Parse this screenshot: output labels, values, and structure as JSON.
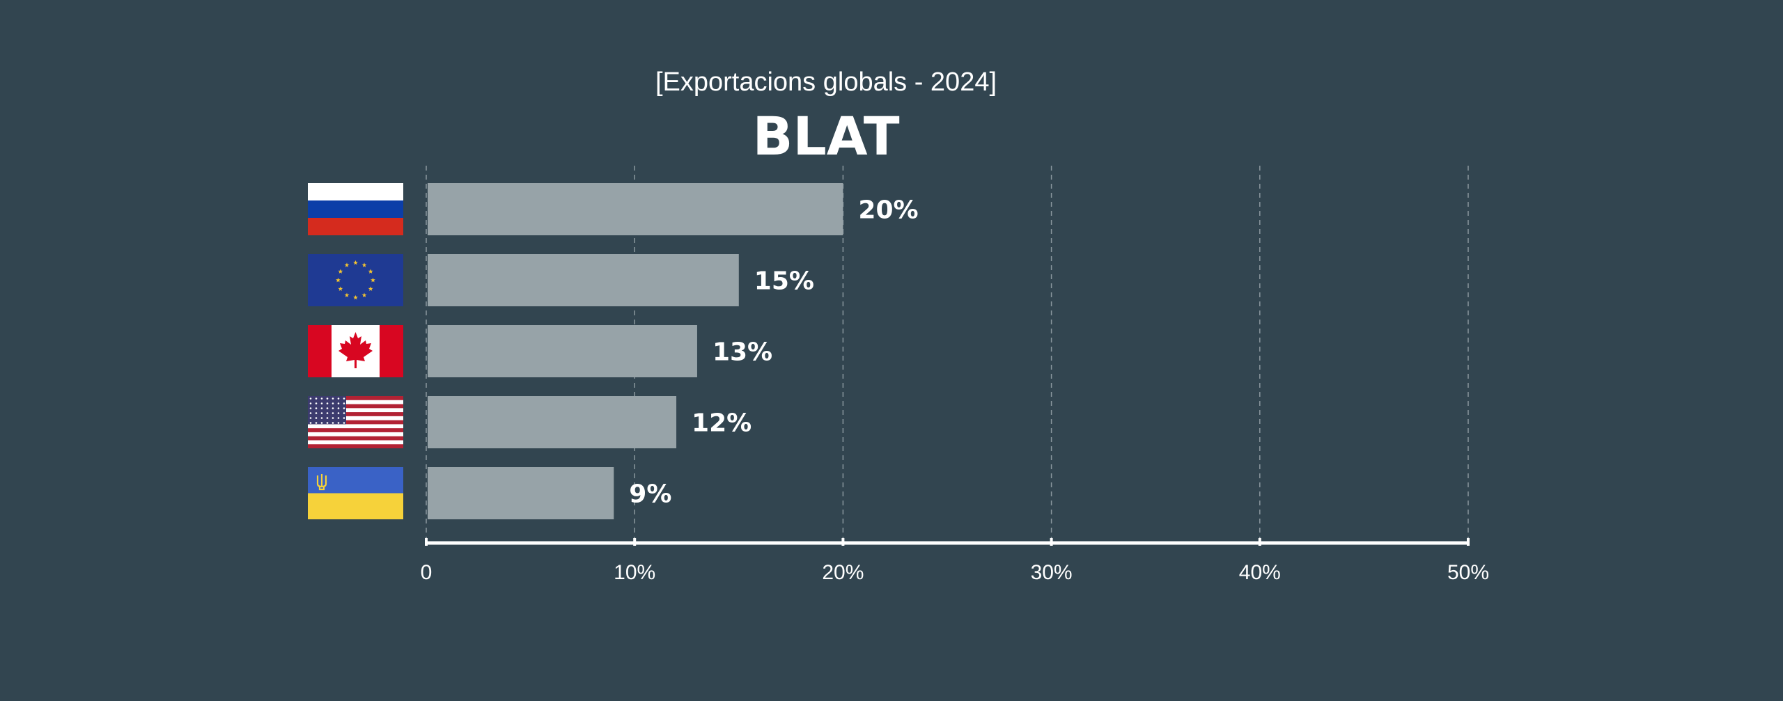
{
  "chart_data": {
    "type": "bar",
    "orientation": "horizontal",
    "subtitle": "[Exportacions globals - 2024]",
    "title": "BLAT",
    "categories": [
      "russia-flag-icon",
      "eu-flag-icon",
      "canada-flag-icon",
      "usa-flag-icon",
      "ukraine-flag-icon"
    ],
    "values": [
      20,
      15,
      13,
      12,
      9
    ],
    "value_labels": [
      "20%",
      "15%",
      "13%",
      "12%",
      "9%"
    ],
    "xlim": [
      0,
      50
    ],
    "xticks": [
      0,
      10,
      20,
      30,
      40,
      50
    ],
    "xtick_labels": [
      "0",
      "10%",
      "20%",
      "30%",
      "40%",
      "50%"
    ],
    "grid": "vertical-dashed",
    "colors": {
      "background": "#324550",
      "bar": "#97a3a8",
      "grid": "#8a979e",
      "axis": "#ffffff",
      "text": "#ffffff"
    }
  }
}
